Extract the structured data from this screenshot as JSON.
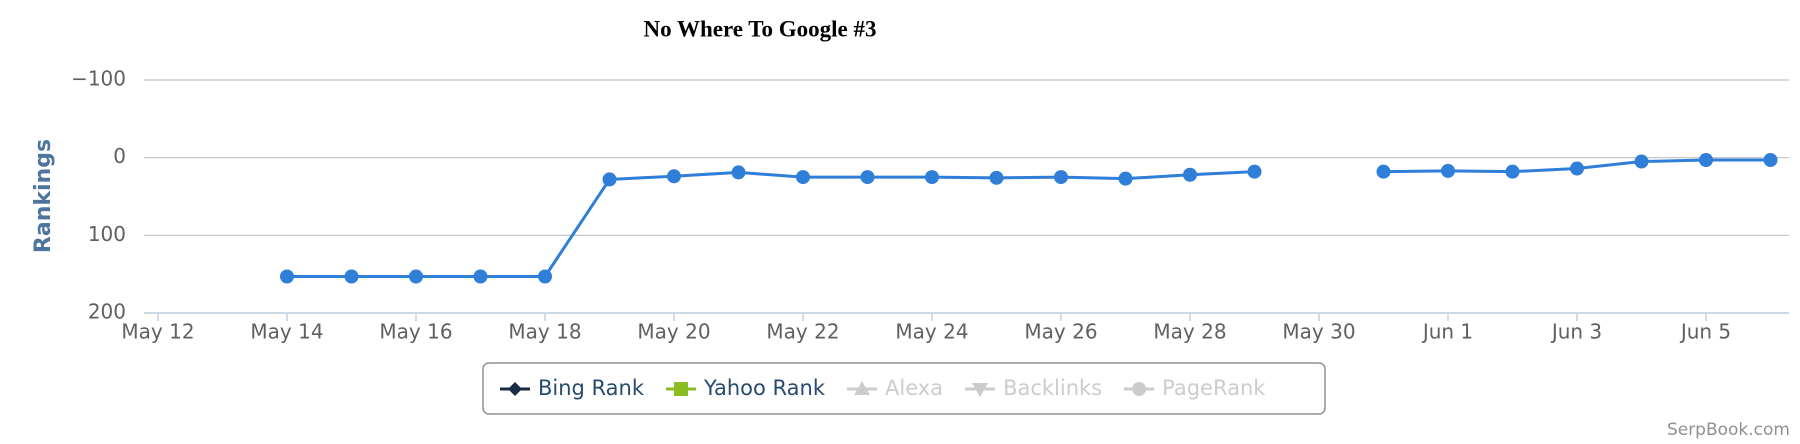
{
  "chart_data": {
    "type": "line",
    "title": "No Where To Google #3",
    "y_label": "Rankings",
    "credit": "SerpBook.com",
    "categories": [
      null,
      null,
      "May 14",
      null,
      "May 16",
      null,
      "May 18",
      null,
      "May 20",
      null,
      "May 22",
      null,
      "May 24",
      null,
      "May 26",
      null,
      "May 28",
      null,
      "May 30",
      null,
      "Jun 1",
      null,
      "Jun 3",
      null,
      "Jun 5",
      null
    ],
    "xticks": [
      "May 12"
    ],
    "series": [
      {
        "color": "#2f7ed8",
        "values": [
          null,
          null,
          153,
          153,
          153,
          153,
          153,
          28,
          24,
          19,
          25,
          25,
          25,
          26,
          25,
          27,
          22,
          18,
          null,
          18,
          17,
          18,
          14,
          5,
          3,
          3
        ]
      }
    ],
    "ylim": [
      -100,
      200
    ],
    "y_reversed": true,
    "yticks": [
      {
        "value": -100,
        "label": "−100"
      },
      0,
      100,
      200
    ],
    "grid": true,
    "legend": [
      {
        "name": "Bing Rank",
        "color": "#1a2b45",
        "symbol": "diamond",
        "visible": true
      },
      {
        "name": "Yahoo Rank",
        "color": "#8bbc21",
        "symbol": "square",
        "visible": true
      },
      {
        "name": "Alexa",
        "color": "#cccccc",
        "symbol": "triangle",
        "visible": false
      },
      {
        "name": "Backlinks",
        "color": "#cccccc",
        "symbol": "triangle-down",
        "visible": false
      },
      {
        "name": "PageRank",
        "color": "#cccccc",
        "symbol": "circle",
        "visible": false
      }
    ]
  }
}
